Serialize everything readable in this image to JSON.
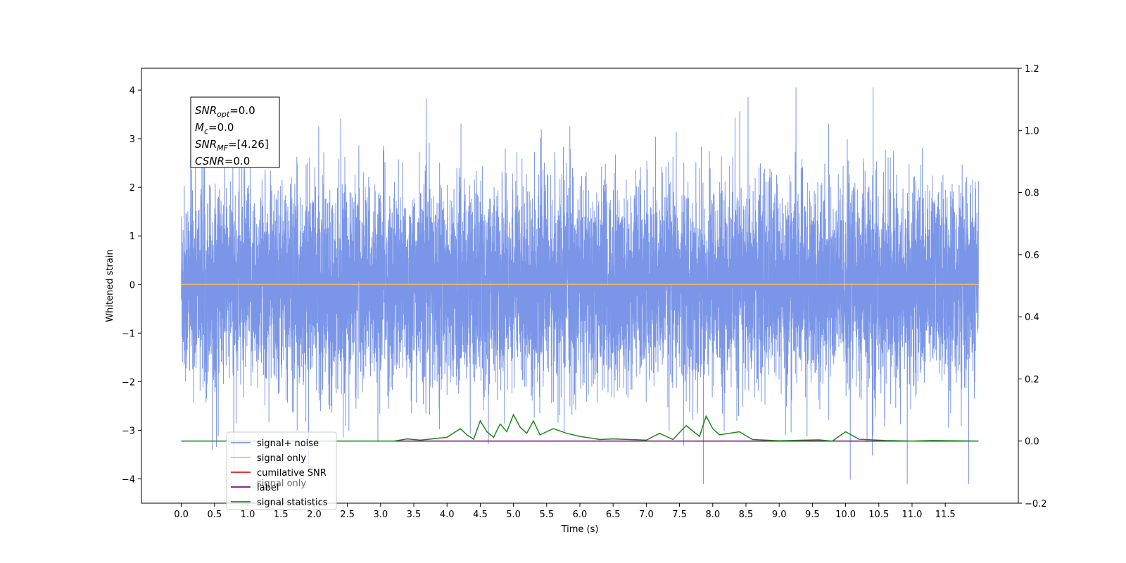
{
  "chart_data": {
    "type": "line",
    "title": "",
    "xlabel": "Time (s)",
    "ylabel": "Whitened strain",
    "xlim": [
      -0.6,
      12.6
    ],
    "ylim": [
      -4.5,
      4.45
    ],
    "y2lim": [
      -0.2,
      1.2
    ],
    "x_ticks": [
      0.0,
      0.5,
      1.0,
      1.5,
      2.0,
      2.5,
      3.0,
      3.5,
      4.0,
      4.5,
      5.0,
      5.5,
      6.0,
      6.5,
      7.0,
      7.5,
      8.0,
      8.5,
      9.0,
      9.5,
      10.0,
      10.5,
      11.0,
      11.5
    ],
    "x_tick_labels": [
      "0.0",
      "0.5",
      "1.0",
      "1.5",
      "2.0",
      "2.5",
      "3.0",
      "3.5",
      "4.0",
      "4.5",
      "5.0",
      "5.5",
      "6.0",
      "6.5",
      "7.0",
      "7.5",
      "8.0",
      "8.5",
      "9.0",
      "9.5",
      "10.0",
      "10.5",
      "11.0",
      "11.5"
    ],
    "y_ticks": [
      -4,
      -3,
      -2,
      -1,
      0,
      1,
      2,
      3,
      4
    ],
    "y_tick_labels": [
      "−4",
      "−3",
      "−2",
      "−1",
      "0",
      "1",
      "2",
      "3",
      "4"
    ],
    "y2_ticks": [
      -0.2,
      0.0,
      0.2,
      0.4,
      0.6,
      0.8,
      1.0,
      1.2
    ],
    "y2_tick_labels": [
      "−0.2",
      "0.0",
      "0.2",
      "0.4",
      "0.6",
      "0.8",
      "1.0",
      "1.2"
    ],
    "grid": false,
    "legend_position": "lower-left",
    "annotation": {
      "lines": [
        {
          "main": "SNR",
          "sub": "opt",
          "rest": "=0.0"
        },
        {
          "main": "M",
          "sub": "c",
          "rest": "=0.0"
        },
        {
          "main": "SNR",
          "sub": "MF",
          "rest": "=[4.26]"
        },
        {
          "main": "CSNR",
          "sub": "",
          "rest": "=0.0"
        }
      ]
    },
    "series": [
      {
        "name": "signal+ noise",
        "color": "#7b96e8",
        "axis": "left",
        "x_range": [
          0.0,
          12.0
        ],
        "amplitude_envelope": [
          -2.5,
          2.5
        ],
        "extremes": {
          "max": 4.05,
          "min": -4.1
        }
      },
      {
        "name": "signal only",
        "color": "#f5b96b",
        "axis": "left",
        "x": [
          0.0,
          12.0
        ],
        "y": [
          0.0,
          0.0
        ]
      },
      {
        "name": "cumilative SNR",
        "color": "#e41a1c",
        "axis": "right",
        "x": [
          0.0,
          12.0
        ],
        "y": [
          0.0,
          0.0
        ]
      },
      {
        "name": "label",
        "color": "#7a0e7a",
        "axis": "right",
        "x": [
          0.0,
          12.0
        ],
        "y": [
          0.0,
          0.0
        ]
      },
      {
        "name": "signal statistics",
        "color": "#1a8a1a",
        "axis": "right",
        "x": [
          0.0,
          3.2,
          3.4,
          3.6,
          4.0,
          4.2,
          4.3,
          4.4,
          4.5,
          4.6,
          4.7,
          4.8,
          4.9,
          5.0,
          5.1,
          5.2,
          5.3,
          5.4,
          5.6,
          5.8,
          6.0,
          6.3,
          6.5,
          7.0,
          7.2,
          7.4,
          7.6,
          7.8,
          7.9,
          8.0,
          8.1,
          8.4,
          8.6,
          9.0,
          9.6,
          9.8,
          10.0,
          10.2,
          10.6,
          11.0,
          11.3,
          12.0
        ],
        "y": [
          0.0,
          0.0,
          0.007,
          0.003,
          0.012,
          0.04,
          0.02,
          0.006,
          0.065,
          0.03,
          0.012,
          0.055,
          0.03,
          0.085,
          0.045,
          0.025,
          0.065,
          0.02,
          0.04,
          0.025,
          0.015,
          0.005,
          0.007,
          0.003,
          0.025,
          0.005,
          0.05,
          0.015,
          0.08,
          0.04,
          0.02,
          0.03,
          0.005,
          0.001,
          0.004,
          0.0,
          0.03,
          0.006,
          0.002,
          0.0,
          0.002,
          0.0
        ]
      }
    ],
    "legend_entries": [
      "signal+ noise",
      "signal only",
      "cumilative SNR",
      "label",
      "signal statistics"
    ],
    "hidden_legend_text": "signal only"
  }
}
